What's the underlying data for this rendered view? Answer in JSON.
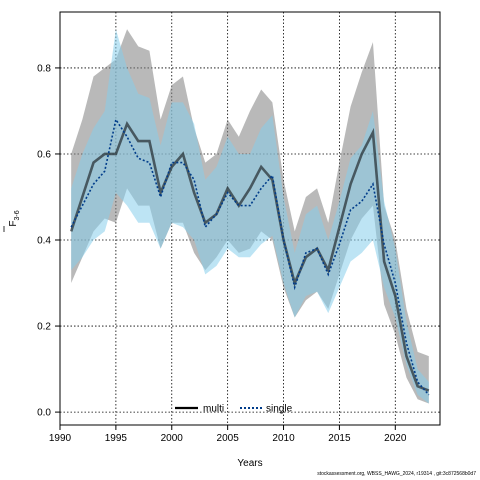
{
  "chart_data": {
    "type": "line",
    "xlabel": "Years",
    "ylabel": "F",
    "ylabel_subscript": "3-6",
    "xlim": [
      1990,
      2024
    ],
    "ylim": [
      -0.03,
      0.93
    ],
    "xticks": [
      1990,
      1995,
      2000,
      2005,
      2010,
      2015,
      2020
    ],
    "yticks": [
      0.0,
      0.2,
      0.4,
      0.6,
      0.8
    ],
    "ytick_labels": [
      "0.0",
      "0.2",
      "0.4",
      "0.6",
      "0.8"
    ],
    "grid": true,
    "legend": {
      "placement": "bottom-center",
      "entries": [
        "multi",
        "single"
      ]
    },
    "x": [
      1991,
      1992,
      1993,
      1994,
      1995,
      1996,
      1997,
      1998,
      1999,
      2000,
      2001,
      2002,
      2003,
      2004,
      2005,
      2006,
      2007,
      2008,
      2009,
      2010,
      2011,
      2012,
      2013,
      2014,
      2015,
      2016,
      2017,
      2018,
      2019,
      2020,
      2021,
      2022,
      2023
    ],
    "series": [
      {
        "name": "multi",
        "color": "#000000",
        "values": [
          0.42,
          0.5,
          0.58,
          0.6,
          0.6,
          0.67,
          0.63,
          0.63,
          0.51,
          0.57,
          0.6,
          0.51,
          0.44,
          0.46,
          0.52,
          0.48,
          0.52,
          0.57,
          0.54,
          0.4,
          0.3,
          0.36,
          0.38,
          0.33,
          0.43,
          0.53,
          0.6,
          0.65,
          0.35,
          0.27,
          0.13,
          0.06,
          0.05
        ],
        "lower": [
          0.3,
          0.36,
          0.42,
          0.45,
          0.44,
          0.52,
          0.48,
          0.48,
          0.38,
          0.44,
          0.44,
          0.37,
          0.33,
          0.36,
          0.4,
          0.37,
          0.38,
          0.42,
          0.4,
          0.29,
          0.22,
          0.26,
          0.28,
          0.24,
          0.32,
          0.4,
          0.45,
          0.48,
          0.25,
          0.18,
          0.08,
          0.03,
          0.02
        ],
        "upper": [
          0.6,
          0.68,
          0.78,
          0.8,
          0.82,
          0.89,
          0.85,
          0.84,
          0.68,
          0.76,
          0.78,
          0.66,
          0.58,
          0.6,
          0.68,
          0.64,
          0.7,
          0.75,
          0.72,
          0.54,
          0.42,
          0.5,
          0.52,
          0.44,
          0.58,
          0.71,
          0.79,
          0.86,
          0.48,
          0.4,
          0.24,
          0.14,
          0.13
        ]
      },
      {
        "name": "single",
        "color": "#003c8a",
        "values": [
          0.43,
          0.48,
          0.53,
          0.56,
          0.68,
          0.64,
          0.59,
          0.58,
          0.5,
          0.58,
          0.58,
          0.54,
          0.43,
          0.46,
          0.51,
          0.48,
          0.48,
          0.52,
          0.55,
          0.4,
          0.29,
          0.37,
          0.38,
          0.32,
          0.39,
          0.47,
          0.49,
          0.53,
          0.39,
          0.3,
          0.16,
          0.07,
          0.04
        ],
        "lower": [
          0.33,
          0.36,
          0.4,
          0.42,
          0.51,
          0.48,
          0.44,
          0.44,
          0.38,
          0.44,
          0.43,
          0.4,
          0.32,
          0.34,
          0.38,
          0.36,
          0.36,
          0.39,
          0.41,
          0.3,
          0.22,
          0.27,
          0.28,
          0.23,
          0.29,
          0.35,
          0.37,
          0.4,
          0.29,
          0.22,
          0.11,
          0.04,
          0.02
        ],
        "upper": [
          0.52,
          0.6,
          0.66,
          0.7,
          0.89,
          0.8,
          0.74,
          0.73,
          0.62,
          0.72,
          0.72,
          0.67,
          0.54,
          0.57,
          0.64,
          0.6,
          0.6,
          0.66,
          0.69,
          0.5,
          0.37,
          0.46,
          0.48,
          0.4,
          0.49,
          0.59,
          0.62,
          0.7,
          0.49,
          0.38,
          0.21,
          0.1,
          0.07
        ]
      }
    ]
  },
  "footer": "stockassessment.org, WBSS_HAWG_2024, r19314 , git:3c872568b0d7"
}
